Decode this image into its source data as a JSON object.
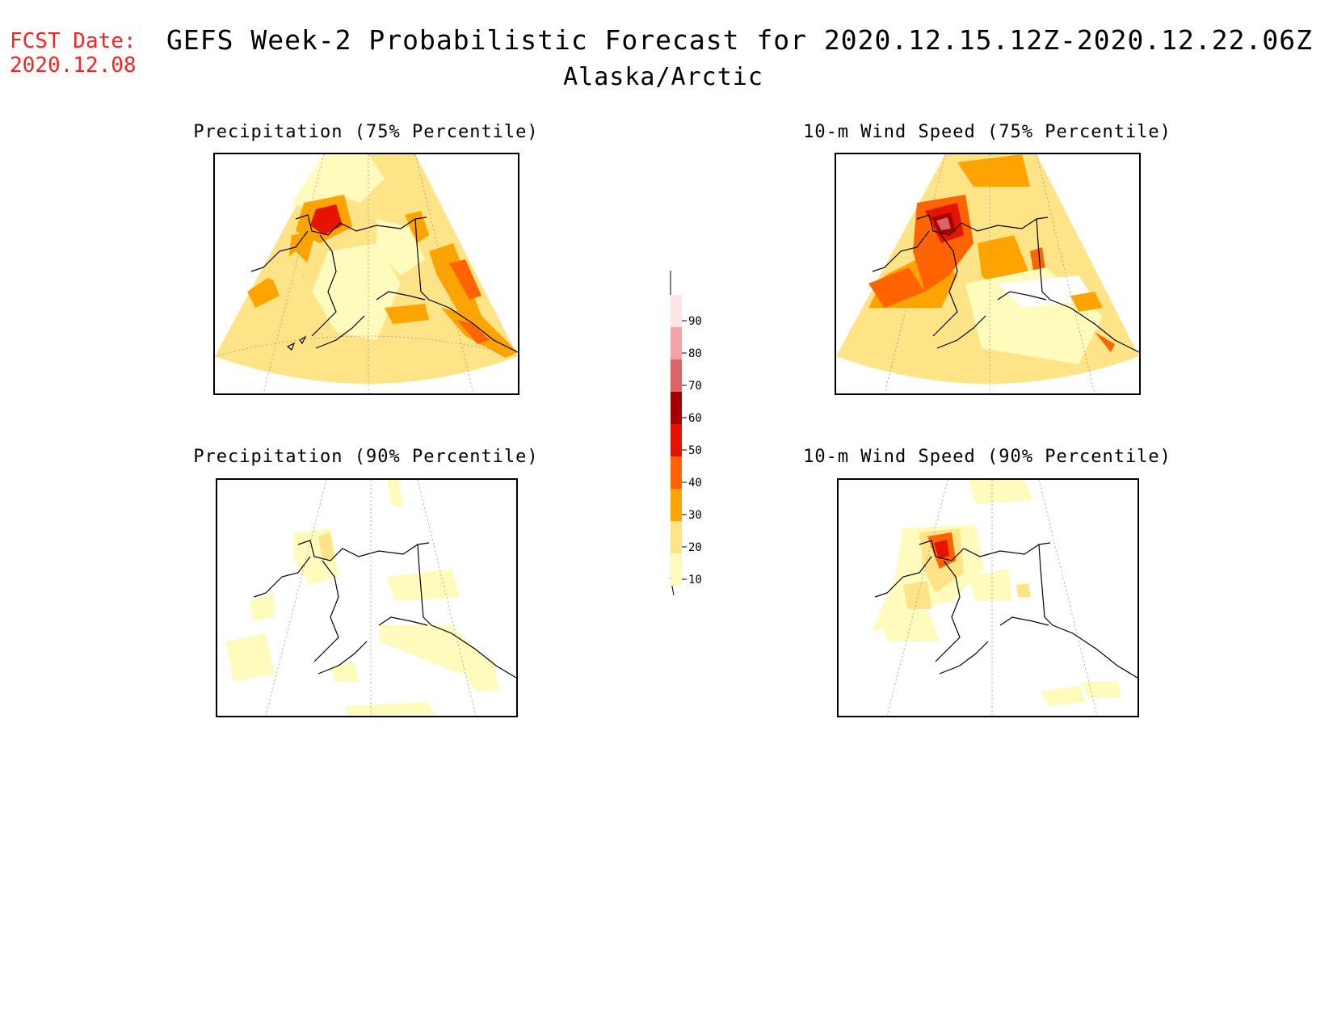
{
  "header": {
    "fcst_label": "FCST Date:",
    "fcst_date": "2020.12.08",
    "title": "GEFS Week-2 Probabilistic Forecast for 2020.12.15.12Z-2020.12.22.06Z",
    "subtitle": "Alaska/Arctic"
  },
  "panels": [
    {
      "title": "Precipitation (75% Percentile)"
    },
    {
      "title": "10-m Wind Speed (75% Percentile)"
    },
    {
      "title": "Precipitation (90% Percentile)"
    },
    {
      "title": "10-m Wind Speed (90% Percentile)"
    }
  ],
  "colorbar": {
    "levels": [
      "10",
      "20",
      "30",
      "40",
      "50",
      "60",
      "70",
      "80",
      "90"
    ],
    "colors": [
      "#fffbbd",
      "#ffe387",
      "#ffa300",
      "#ff6400",
      "#e51400",
      "#a50000",
      "#dc6464",
      "#f2a4a4",
      "#ffe5e5"
    ]
  }
}
